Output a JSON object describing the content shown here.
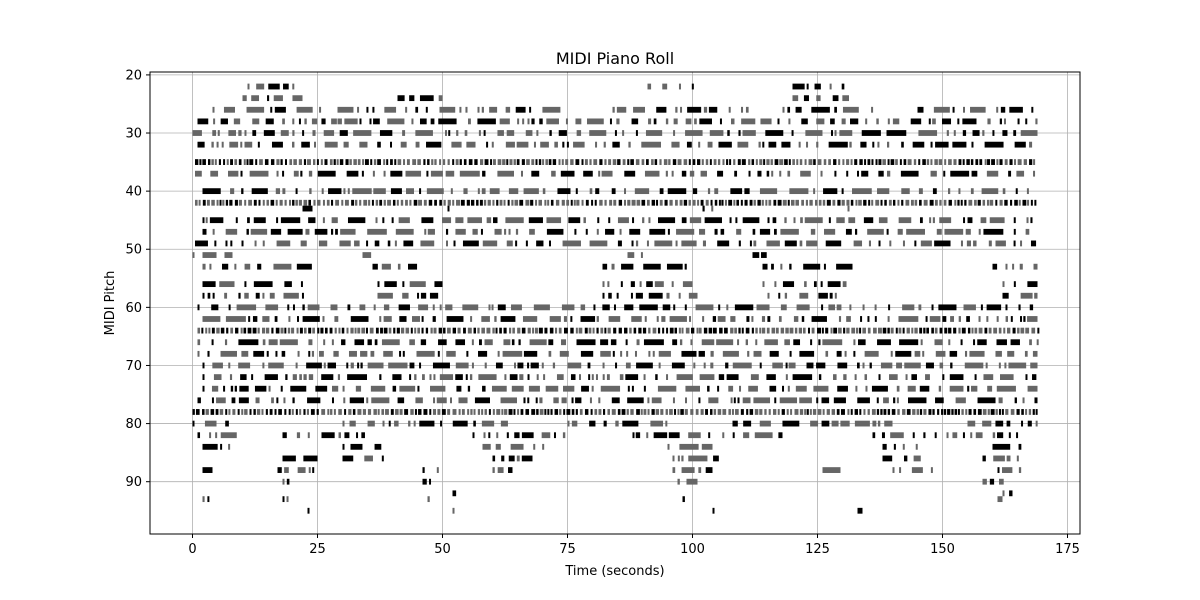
{
  "chart_data": {
    "type": "piano-roll",
    "title": "MIDI Piano Roll",
    "xlabel": "Time (seconds)",
    "ylabel": "MIDI Pitch",
    "xlim": [
      -8.5,
      177.5
    ],
    "ylim": [
      99,
      19.5
    ],
    "y_inverted": true,
    "x_ticks": [
      0,
      25,
      50,
      75,
      100,
      125,
      150,
      175
    ],
    "y_ticks": [
      20,
      30,
      40,
      50,
      60,
      70,
      80,
      90
    ],
    "grid": true,
    "note_colors": {
      "strong": "#000000",
      "soft": "#666666"
    },
    "note_duration_range_seconds": [
      0.3,
      4.0
    ],
    "time_span_seconds": [
      0,
      169
    ],
    "pitch_rows": [
      {
        "pitch": 22,
        "time_ranges": [
          [
            11,
            20
          ],
          [
            91,
            101
          ],
          [
            120,
            131
          ]
        ]
      },
      {
        "pitch": 24,
        "time_ranges": [
          [
            10,
            22
          ],
          [
            41,
            50
          ],
          [
            120,
            132
          ]
        ]
      },
      {
        "pitch": 26,
        "time_ranges": [
          [
            4,
            26
          ],
          [
            29,
            55
          ],
          [
            57,
            74
          ],
          [
            84,
            112
          ],
          [
            118,
            136
          ],
          [
            145,
            169
          ]
        ]
      },
      {
        "pitch": 28,
        "time_ranges": [
          [
            1,
            30
          ],
          [
            29,
            67
          ],
          [
            67,
            116
          ],
          [
            117,
            169
          ]
        ]
      },
      {
        "pitch": 30,
        "time_ranges": [
          [
            0,
            169
          ]
        ]
      },
      {
        "pitch": 32,
        "time_ranges": [
          [
            1,
            169
          ]
        ]
      },
      {
        "pitch": 35,
        "time_ranges": [
          [
            0.5,
            168.5
          ]
        ],
        "dense": true
      },
      {
        "pitch": 37,
        "time_ranges": [
          [
            0.5,
            168.5
          ]
        ]
      },
      {
        "pitch": 40,
        "time_ranges": [
          [
            2,
            168
          ]
        ]
      },
      {
        "pitch": 42,
        "time_ranges": [
          [
            0.5,
            168.5
          ]
        ],
        "dense": true
      },
      {
        "pitch": 43,
        "time_ranges": [
          [
            22,
            24
          ],
          [
            51,
            53
          ],
          [
            102,
            104
          ],
          [
            131,
            133
          ]
        ]
      },
      {
        "pitch": 45,
        "time_ranges": [
          [
            2,
            168
          ]
        ]
      },
      {
        "pitch": 47,
        "time_ranges": [
          [
            2,
            168
          ]
        ]
      },
      {
        "pitch": 49,
        "time_ranges": [
          [
            0.5,
            169
          ]
        ]
      },
      {
        "pitch": 51,
        "time_ranges": [
          [
            0,
            1
          ],
          [
            2,
            8
          ],
          [
            34,
            36
          ],
          [
            87,
            90
          ],
          [
            112,
            116
          ]
        ]
      },
      {
        "pitch": 53,
        "time_ranges": [
          [
            2,
            26
          ],
          [
            36,
            46
          ],
          [
            82,
            100
          ],
          [
            114,
            132
          ],
          [
            160,
            169
          ]
        ]
      },
      {
        "pitch": 56,
        "time_ranges": [
          [
            2,
            22
          ],
          [
            37,
            50
          ],
          [
            82,
            100
          ],
          [
            114,
            131
          ],
          [
            162,
            169
          ]
        ]
      },
      {
        "pitch": 58,
        "time_ranges": [
          [
            2,
            22
          ],
          [
            37,
            50
          ],
          [
            82,
            101
          ],
          [
            115,
            130
          ],
          [
            162,
            169
          ]
        ]
      },
      {
        "pitch": 60,
        "time_ranges": [
          [
            1,
            169
          ]
        ]
      },
      {
        "pitch": 62,
        "time_ranges": [
          [
            2,
            169
          ]
        ]
      },
      {
        "pitch": 64,
        "time_ranges": [
          [
            1,
            169
          ]
        ],
        "dense": true
      },
      {
        "pitch": 66,
        "time_ranges": [
          [
            1,
            169
          ]
        ]
      },
      {
        "pitch": 68,
        "time_ranges": [
          [
            1,
            169
          ]
        ]
      },
      {
        "pitch": 70,
        "time_ranges": [
          [
            2,
            169
          ]
        ]
      },
      {
        "pitch": 72,
        "time_ranges": [
          [
            2,
            169
          ]
        ]
      },
      {
        "pitch": 74,
        "time_ranges": [
          [
            2,
            169
          ]
        ]
      },
      {
        "pitch": 76,
        "time_ranges": [
          [
            1,
            169
          ]
        ]
      },
      {
        "pitch": 78,
        "time_ranges": [
          [
            0,
            169
          ]
        ],
        "dense": true
      },
      {
        "pitch": 80,
        "time_ranges": [
          [
            0,
            8
          ],
          [
            30,
            64
          ],
          [
            75,
            95
          ],
          [
            108,
            140
          ],
          [
            155,
            169
          ]
        ]
      },
      {
        "pitch": 82,
        "time_ranges": [
          [
            1,
            10
          ],
          [
            18,
            36
          ],
          [
            56,
            75
          ],
          [
            88,
            118
          ],
          [
            136,
            166
          ]
        ]
      },
      {
        "pitch": 84,
        "time_ranges": [
          [
            2,
            8
          ],
          [
            30,
            38
          ],
          [
            58,
            70
          ],
          [
            95,
            104
          ],
          [
            138,
            146
          ],
          [
            160,
            166
          ]
        ]
      },
      {
        "pitch": 86,
        "time_ranges": [
          [
            18,
            25
          ],
          [
            30,
            38
          ],
          [
            60,
            68
          ],
          [
            96,
            106
          ],
          [
            138,
            146
          ],
          [
            158,
            166
          ]
        ]
      },
      {
        "pitch": 88,
        "time_ranges": [
          [
            2,
            4
          ],
          [
            17,
            24
          ],
          [
            46,
            50
          ],
          [
            60,
            64
          ],
          [
            96,
            104
          ],
          [
            126,
            130
          ],
          [
            140,
            148
          ],
          [
            161,
            166
          ]
        ]
      },
      {
        "pitch": 90,
        "time_ranges": [
          [
            18,
            20
          ],
          [
            46,
            49
          ],
          [
            97,
            101
          ],
          [
            158,
            163
          ]
        ]
      },
      {
        "pitch": 92,
        "time_ranges": [
          [
            52,
            53
          ],
          [
            162,
            164
          ]
        ]
      },
      {
        "pitch": 93,
        "time_ranges": [
          [
            2,
            3
          ],
          [
            18,
            19
          ],
          [
            47,
            48
          ],
          [
            98,
            99
          ],
          [
            161,
            162
          ]
        ]
      },
      {
        "pitch": 95,
        "time_ranges": [
          [
            23,
            24
          ],
          [
            52,
            53
          ],
          [
            104,
            105
          ],
          [
            133,
            134
          ]
        ]
      }
    ]
  }
}
